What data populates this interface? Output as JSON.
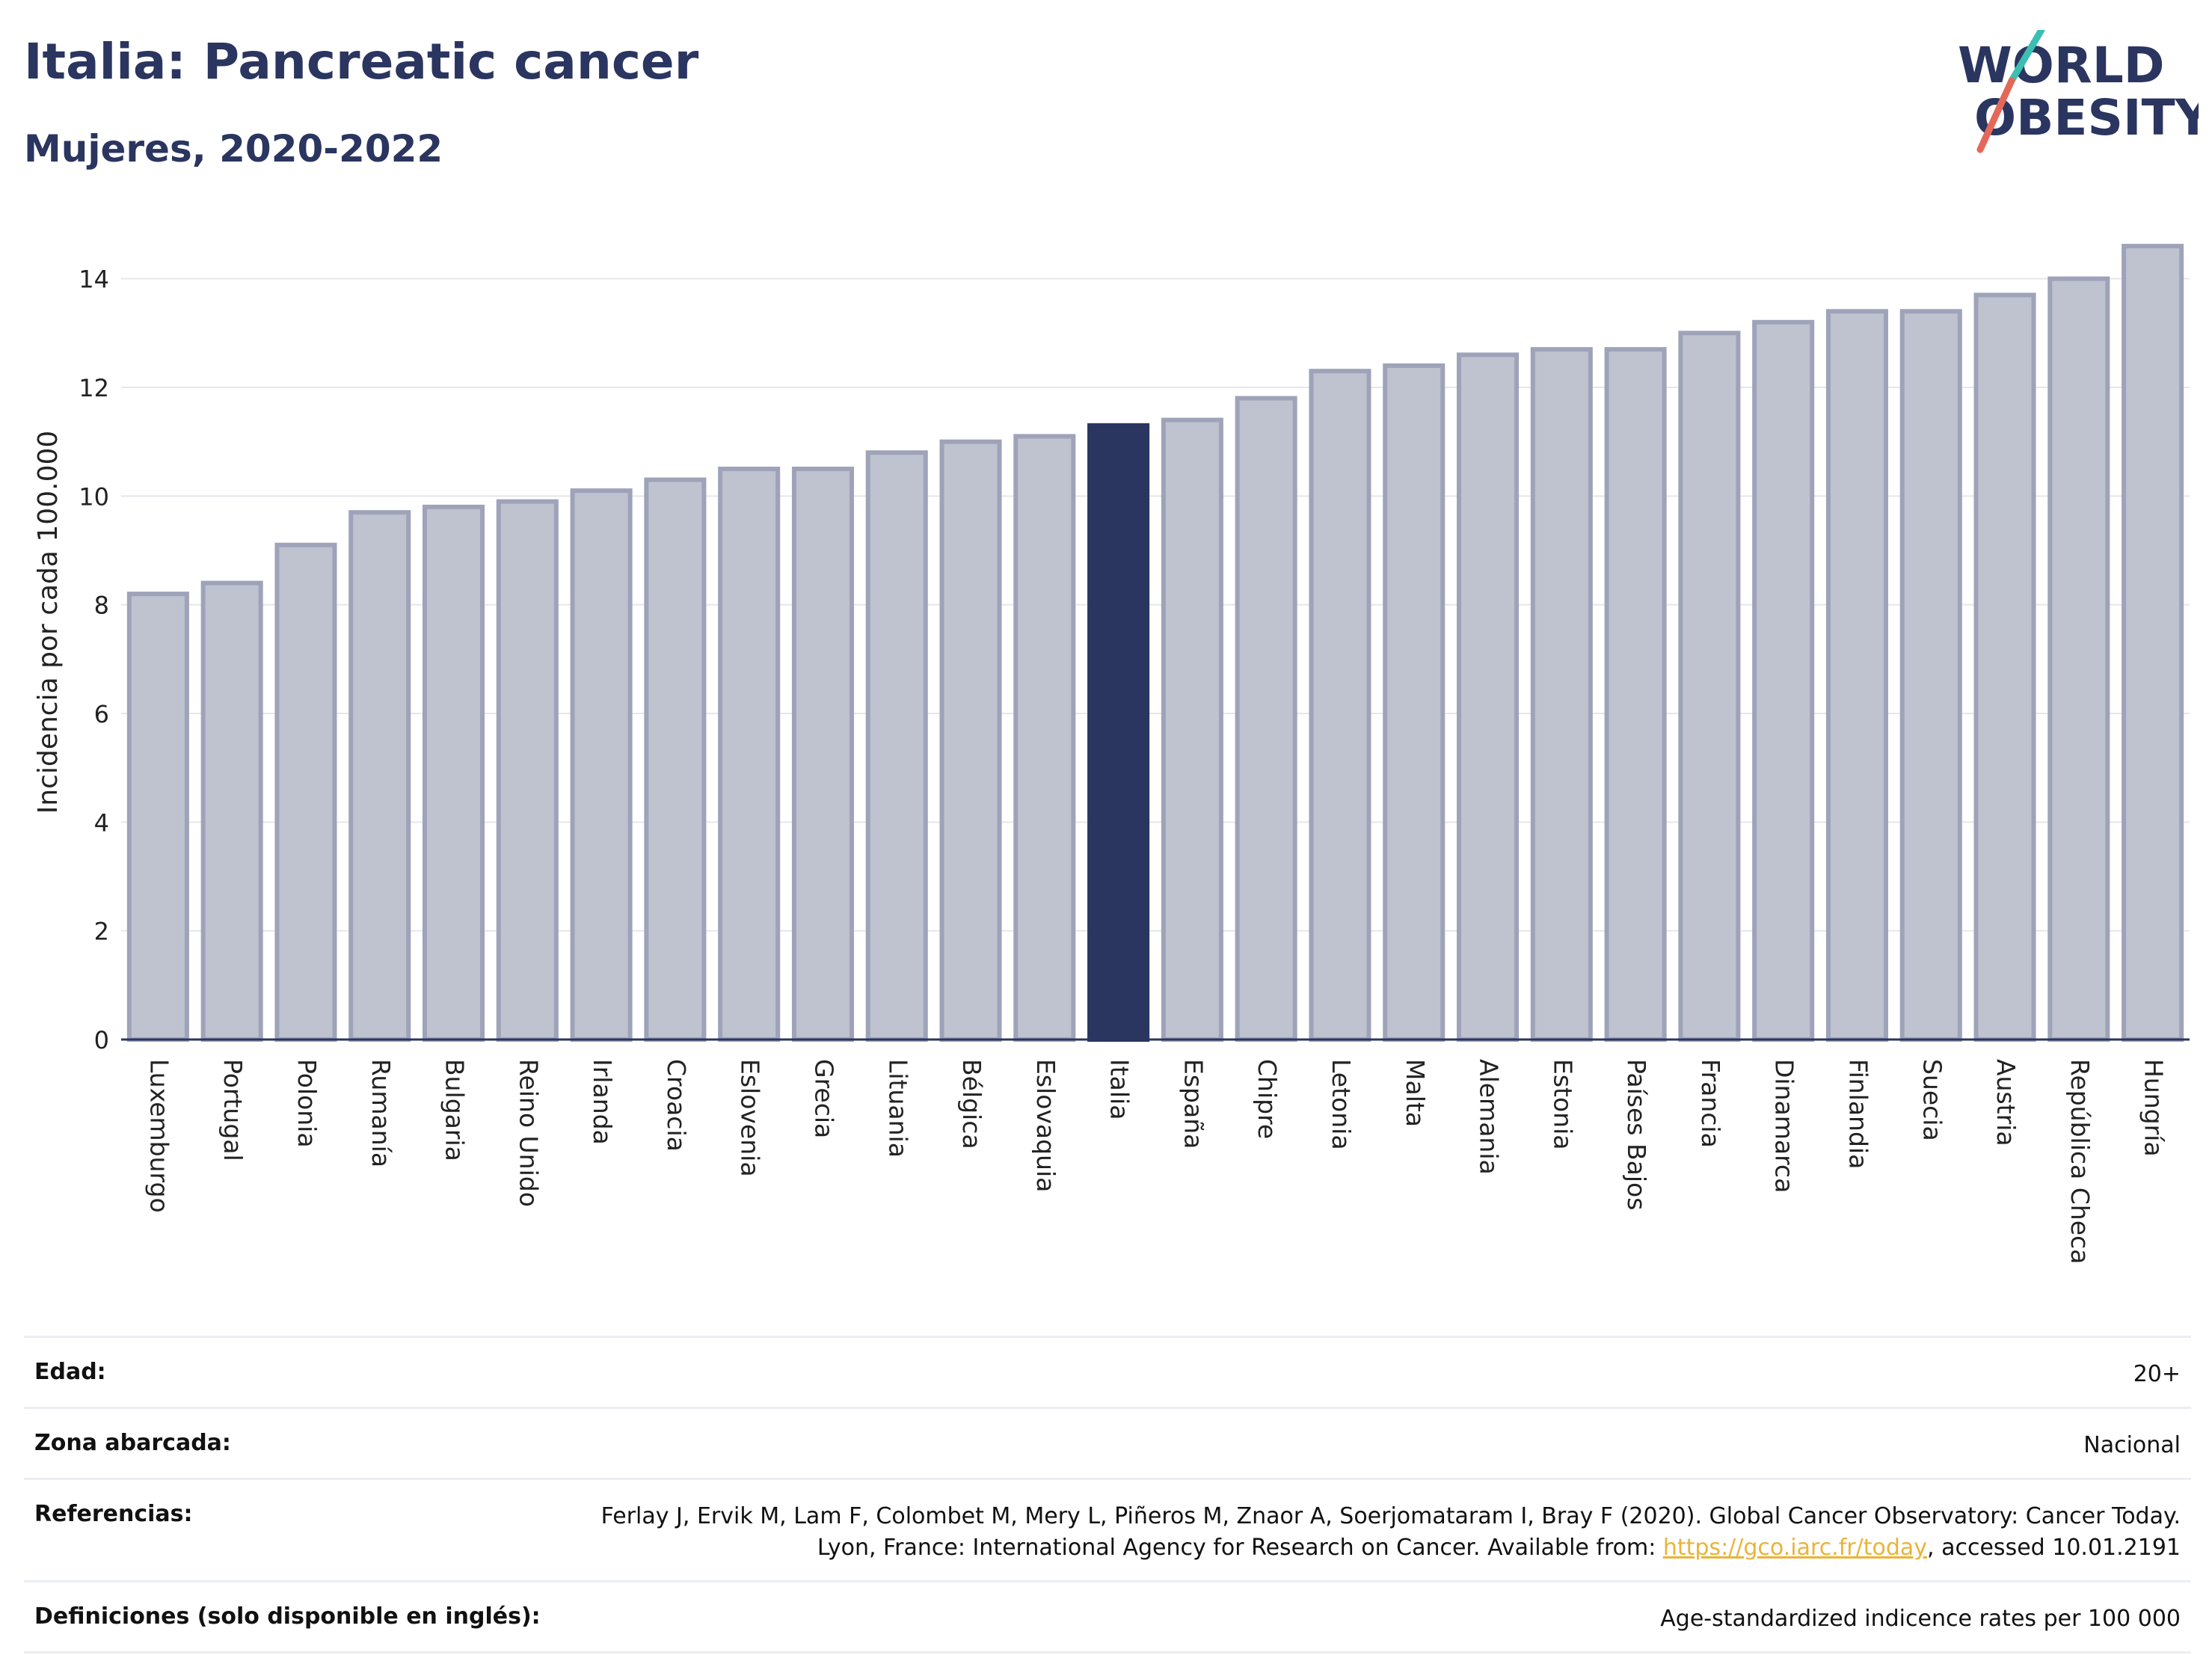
{
  "header": {
    "title": "Italia: Pancreatic cancer",
    "subtitle": "Mujeres, 2020-2022"
  },
  "logo": {
    "line1": "WORLD",
    "line2": "OBESITY"
  },
  "colors": {
    "bar": "#bfc2cf",
    "bar_stroke": "#9ea3b9",
    "highlight": "#2a3560",
    "grid": "#e6e7ec",
    "text": "#2a3560"
  },
  "chart_data": {
    "type": "bar",
    "ylabel": "Incidencia por cada 100.000",
    "ylim": [
      0,
      15
    ],
    "yticks": [
      0,
      2,
      4,
      6,
      8,
      10,
      12,
      14
    ],
    "grid": true,
    "highlight": "Italia",
    "categories": [
      "Luxemburgo",
      "Portugal",
      "Polonia",
      "Rumanía",
      "Bulgaria",
      "Reino Unido",
      "Irlanda",
      "Croacia",
      "Eslovenia",
      "Grecia",
      "Lituania",
      "Bélgica",
      "Eslovaquia",
      "Italia",
      "España",
      "Chipre",
      "Letonia",
      "Malta",
      "Alemania",
      "Estonia",
      "Países Bajos",
      "Francia",
      "Dinamarca",
      "Finlandia",
      "Suecia",
      "Austria",
      "República Checa",
      "Hungría"
    ],
    "values": [
      8.2,
      8.4,
      9.1,
      9.7,
      9.8,
      9.9,
      10.1,
      10.3,
      10.5,
      10.5,
      10.8,
      11.0,
      11.1,
      11.3,
      11.4,
      11.8,
      12.3,
      12.4,
      12.6,
      12.7,
      12.7,
      13.0,
      13.2,
      13.4,
      13.4,
      13.7,
      14.0,
      14.6
    ]
  },
  "footer": {
    "rows": [
      {
        "label": "Edad:",
        "value": "20+"
      },
      {
        "label": "Zona abarcada:",
        "value": "Nacional"
      },
      {
        "label": "Referencias:",
        "value_pre": "Ferlay J, Ervik M, Lam F, Colombet M, Mery L, Piñeros M, Znaor A, Soerjomataram I, Bray F (2020). Global Cancer Observatory: Cancer Today. Lyon, France: International Agency for Research on Cancer. Available from: ",
        "link": "https://gco.iarc.fr/today",
        "value_post": ", accessed 10.01.2191"
      },
      {
        "label": "Definiciones (solo disponible en inglés):",
        "value": "Age-standardized indicence rates per 100 000"
      }
    ]
  }
}
